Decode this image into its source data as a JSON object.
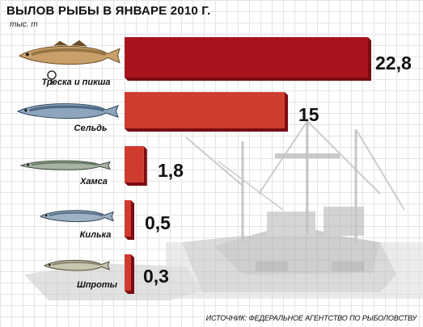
{
  "title": "ВЫЛОВ РЫБЫ В ЯНВАРЕ 2010 Г.",
  "unit": "тыс. т",
  "source": "ИСТОЧНИК: ФЕДЕРАЛЬНОЕ АГЕНТСТВО ПО РЫБОЛОВСТВУ",
  "colors": {
    "bar_main": "#a8131e",
    "bar_other": "#cf3b2e",
    "bar_shadow": "#7a0d13"
  },
  "icons": [
    "cod-fish-icon",
    "herring-fish-icon",
    "anchovy-fish-icon",
    "sprat-fish-icon",
    "sprats-fish-icon"
  ],
  "chart_data": {
    "type": "bar",
    "orientation": "horizontal",
    "categories": [
      "Треска и пикша",
      "Сельдь",
      "Хамса",
      "Килька",
      "Шпроты"
    ],
    "values": [
      22.8,
      15,
      1.8,
      0.5,
      0.3
    ],
    "value_labels": [
      "22,8",
      "15",
      "1,8",
      "0,5",
      "0,3"
    ],
    "title": "ВЫЛОВ РЫБЫ В ЯНВАРЕ 2010 Г.",
    "unit": "тыс. т",
    "xlim": [
      0,
      22.8
    ],
    "grid": false,
    "legend": "none"
  }
}
